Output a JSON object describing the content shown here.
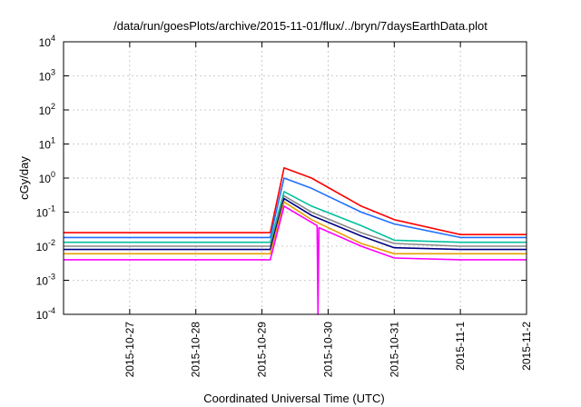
{
  "chart_data": {
    "type": "line",
    "title": "/data/run/goesPlots/archive/2015-11-01/flux/../bryn/7daysEarthData.plot",
    "xlabel": "Coordinated Universal Time (UTC)",
    "ylabel": "cGy/day",
    "yscale": "log",
    "ylim": [
      0.0001,
      10000
    ],
    "xlim": [
      "2015-10-26 00:00",
      "2015-11-02 00:00"
    ],
    "grid": true,
    "legend": "none",
    "x_ticks": [
      "2015-10-27",
      "2015-10-28",
      "2015-10-29",
      "2015-10-30",
      "2015-10-31",
      "2015-11-1",
      "2015-11-2"
    ],
    "y_ticks": [
      {
        "base": "10",
        "exp": "-4"
      },
      {
        "base": "10",
        "exp": "-3"
      },
      {
        "base": "10",
        "exp": "-2"
      },
      {
        "base": "10",
        "exp": "-1"
      },
      {
        "base": "10",
        "exp": "0"
      },
      {
        "base": "10",
        "exp": "1"
      },
      {
        "base": "10",
        "exp": "2"
      },
      {
        "base": "10",
        "exp": "3"
      },
      {
        "base": "10",
        "exp": "4"
      }
    ],
    "series": [
      {
        "color": "#ff0000",
        "x": [
          "2015-10-26 00:00",
          "2015-10-29 03:00",
          "2015-10-29 08:00",
          "2015-10-29 18:00",
          "2015-10-30 12:00",
          "2015-10-31 00:00",
          "2015-11-01 00:00",
          "2015-11-02 00:00"
        ],
        "y": [
          0.025,
          0.025,
          2.0,
          1.0,
          0.15,
          0.06,
          0.022,
          0.022
        ]
      },
      {
        "color": "#1f6fff",
        "x": [
          "2015-10-26 00:00",
          "2015-10-29 03:00",
          "2015-10-29 08:00",
          "2015-10-29 18:00",
          "2015-10-30 12:00",
          "2015-10-31 00:00",
          "2015-11-01 00:00",
          "2015-11-02 00:00"
        ],
        "y": [
          0.018,
          0.018,
          1.0,
          0.5,
          0.1,
          0.045,
          0.018,
          0.018
        ]
      },
      {
        "color": "#00c0a0",
        "x": [
          "2015-10-26 00:00",
          "2015-10-29 03:00",
          "2015-10-29 08:00",
          "2015-10-29 18:00",
          "2015-10-30 12:00",
          "2015-10-31 00:00",
          "2015-11-01 00:00",
          "2015-11-02 00:00"
        ],
        "y": [
          0.013,
          0.013,
          0.4,
          0.15,
          0.04,
          0.015,
          0.013,
          0.013
        ]
      },
      {
        "color": "#888888",
        "x": [
          "2015-10-26 00:00",
          "2015-10-29 03:00",
          "2015-10-29 08:00",
          "2015-10-29 18:00",
          "2015-10-30 12:00",
          "2015-10-31 00:00",
          "2015-11-01 00:00",
          "2015-11-02 00:00"
        ],
        "y": [
          0.01,
          0.01,
          0.3,
          0.1,
          0.025,
          0.012,
          0.01,
          0.01
        ]
      },
      {
        "color": "#000080",
        "x": [
          "2015-10-26 00:00",
          "2015-10-29 03:00",
          "2015-10-29 08:00",
          "2015-10-29 18:00",
          "2015-10-30 12:00",
          "2015-10-31 00:00",
          "2015-11-01 00:00",
          "2015-11-02 00:00"
        ],
        "y": [
          0.008,
          0.008,
          0.25,
          0.08,
          0.02,
          0.009,
          0.008,
          0.008
        ]
      },
      {
        "color": "#e6a000",
        "x": [
          "2015-10-26 00:00",
          "2015-10-29 03:00",
          "2015-10-29 08:00",
          "2015-10-29 18:00",
          "2015-10-30 12:00",
          "2015-10-31 00:00",
          "2015-11-01 00:00",
          "2015-11-02 00:00"
        ],
        "y": [
          0.006,
          0.006,
          0.2,
          0.06,
          0.012,
          0.006,
          0.006,
          0.006
        ]
      },
      {
        "color": "#ff00ff",
        "x": [
          "2015-10-26 00:00",
          "2015-10-29 03:00",
          "2015-10-29 08:00",
          "2015-10-29 18:00",
          "2015-10-29 20:00",
          "2015-10-29 20:20",
          "2015-10-29 20:40",
          "2015-10-30 12:00",
          "2015-10-31 00:00",
          "2015-11-01 00:00",
          "2015-11-02 00:00"
        ],
        "y": [
          0.004,
          0.004,
          0.15,
          0.05,
          0.04,
          0.0001,
          0.035,
          0.01,
          0.0045,
          0.004,
          0.004
        ]
      }
    ]
  }
}
